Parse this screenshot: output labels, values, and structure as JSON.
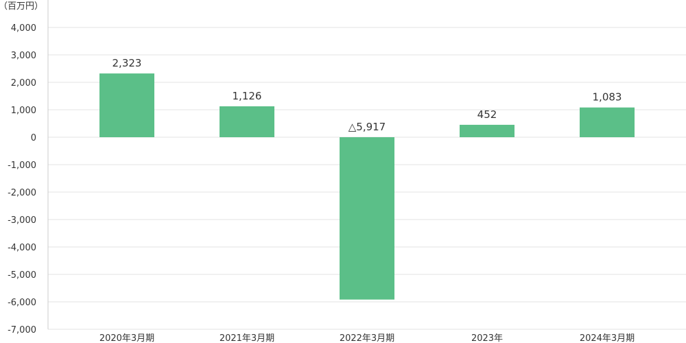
{
  "chart_data": {
    "type": "bar",
    "unit_label": "（百万円）",
    "categories": [
      "2020年3月期",
      "2021年3月期",
      "2022年3月期",
      "2023年",
      "2024年3月期"
    ],
    "values": [
      2323,
      1126,
      -5917,
      452,
      1083
    ],
    "data_labels": [
      "2,323",
      "1,126",
      "△5,917",
      "452",
      "1,083"
    ],
    "yticks": [
      4000,
      3000,
      2000,
      1000,
      0,
      -1000,
      -2000,
      -3000,
      -4000,
      -5000,
      -6000,
      -7000
    ],
    "ytick_labels": [
      "4,000",
      "3,000",
      "2,000",
      "1,000",
      "0",
      "-1,000",
      "-2,000",
      "-3,000",
      "-4,000",
      "-5,000",
      "-6,000",
      "-7,000"
    ],
    "ylim": [
      -7000,
      4000
    ],
    "grid": true,
    "bar_color": "#5bbf88",
    "grid_color": "#e3e3e3",
    "axis_color": "#cccccc"
  }
}
